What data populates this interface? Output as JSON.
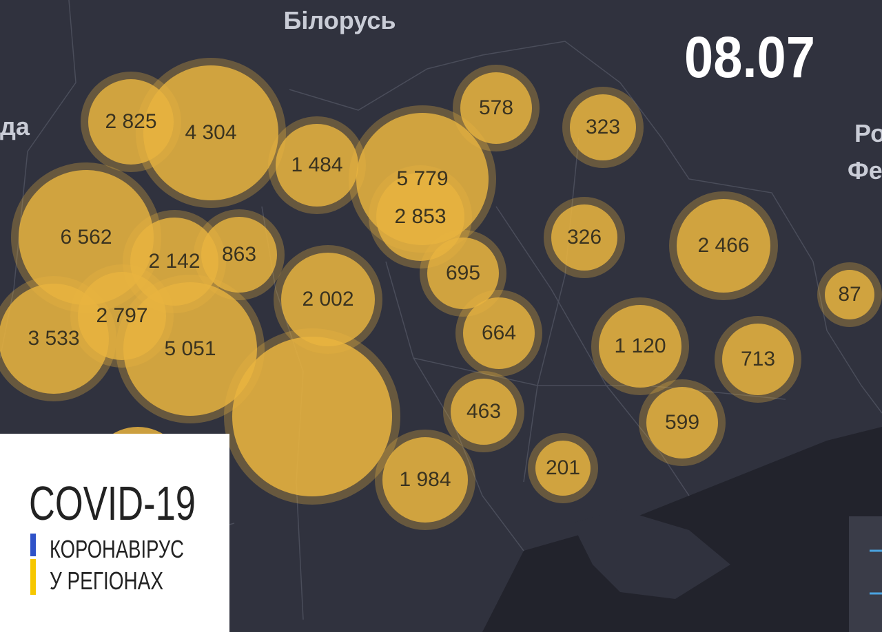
{
  "header": {
    "date": "08.07"
  },
  "map": {
    "country_labels": [
      "Білорусь",
      "да",
      "Ро",
      "Фе"
    ]
  },
  "bubbles": [
    {
      "label": "2 825"
    },
    {
      "label": "4 304"
    },
    {
      "label": "1 484"
    },
    {
      "label": "5 779"
    },
    {
      "label": "2 853"
    },
    {
      "label": "578"
    },
    {
      "label": "323"
    },
    {
      "label": "6 562"
    },
    {
      "label": "2 142"
    },
    {
      "label": "863"
    },
    {
      "label": "2 002"
    },
    {
      "label": "695"
    },
    {
      "label": "326"
    },
    {
      "label": "2 466"
    },
    {
      "label": "87"
    },
    {
      "label": "3 533"
    },
    {
      "label": "2 797"
    },
    {
      "label": "5 051"
    },
    {
      "label": "664"
    },
    {
      "label": "1 120"
    },
    {
      "label": "713"
    },
    {
      "label": "463"
    },
    {
      "label": "599"
    },
    {
      "label": "201"
    },
    {
      "label": "1 984"
    }
  ],
  "panel": {
    "title": "COVID-19",
    "subtitle_lines": [
      "КОРОНАВІРУС",
      "У РЕГІОНАХ"
    ]
  }
}
